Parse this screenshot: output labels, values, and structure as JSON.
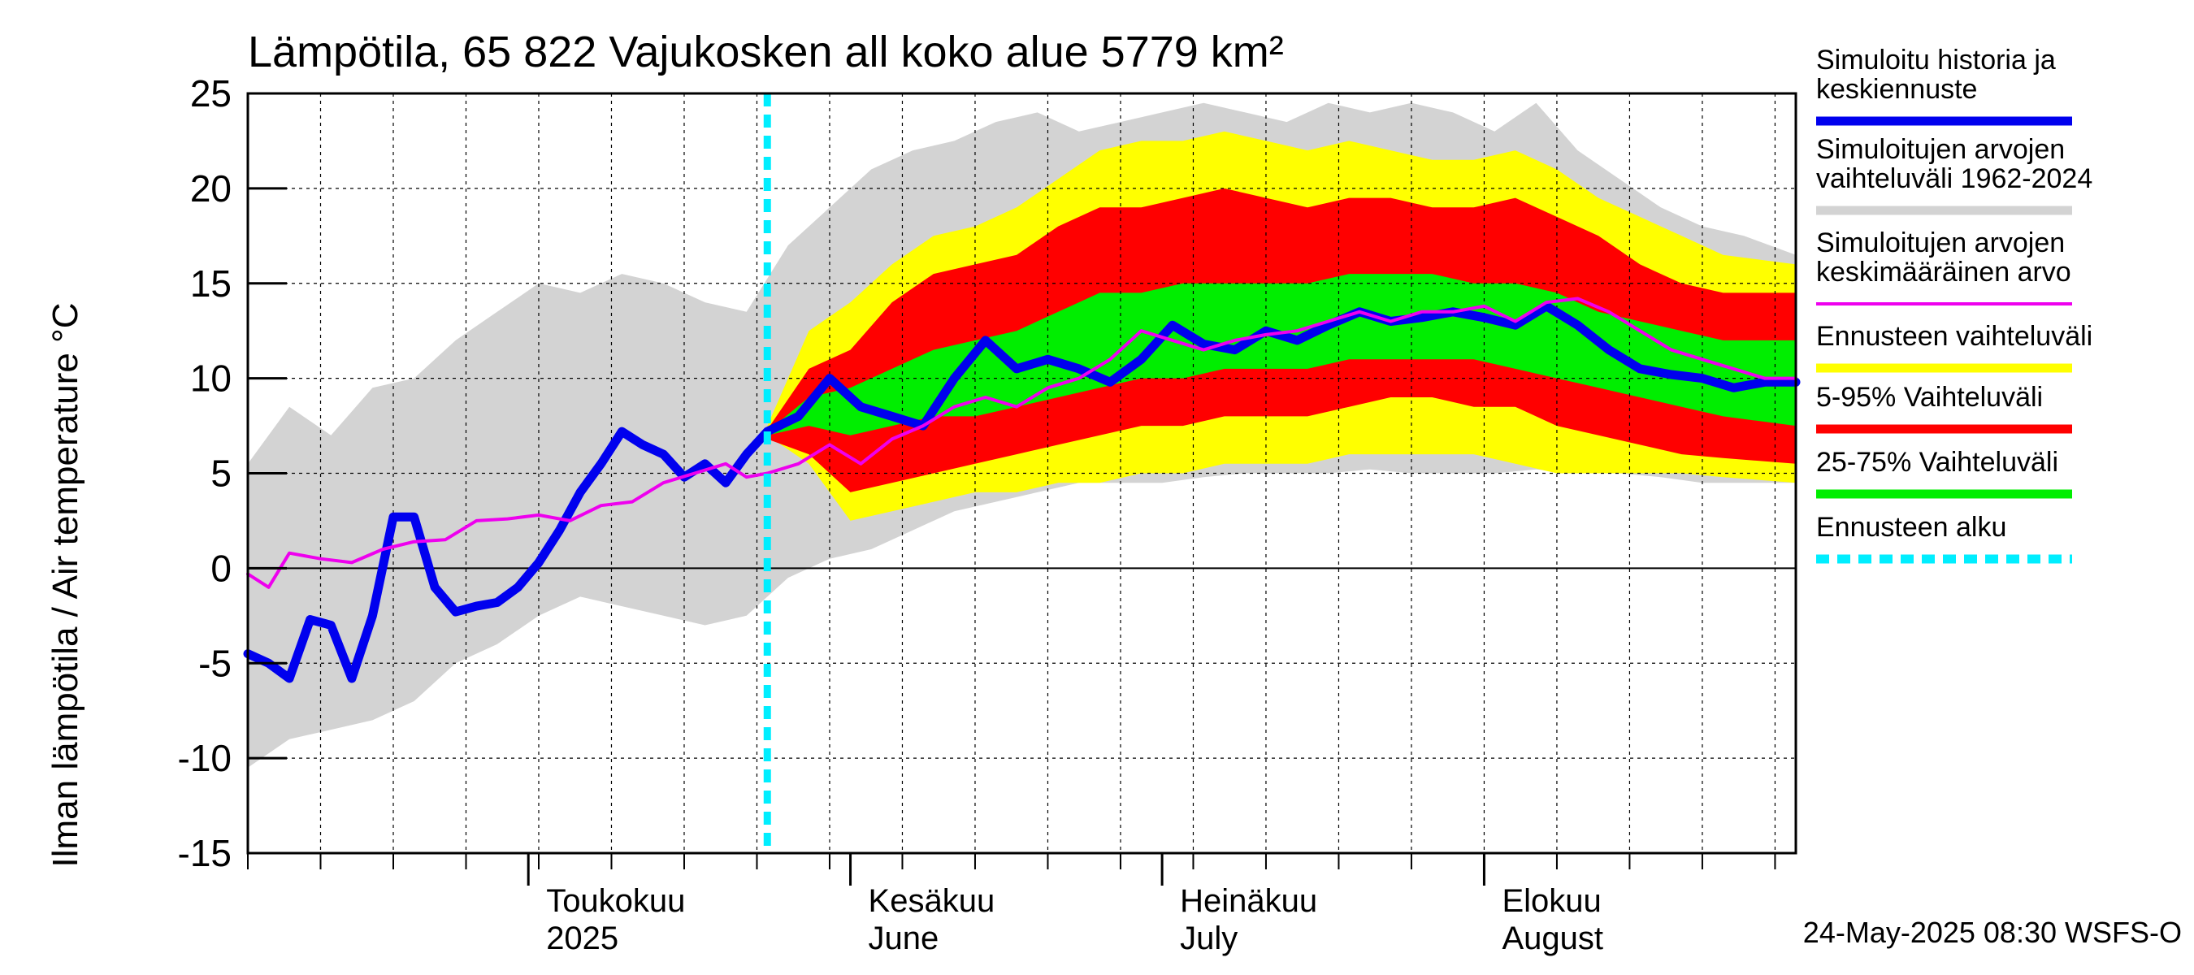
{
  "chart_data": {
    "type": "area",
    "title": "Lämpötila, 65 822 Vajukosken all koko alue 5779 km²",
    "ylabel": "Ilman lämpötila / Air temperature   °C",
    "xlabel": "",
    "ylim": [
      -15,
      25
    ],
    "yticks": [
      -15,
      -10,
      -5,
      0,
      5,
      10,
      15,
      20,
      25
    ],
    "x_start": "2025-04-04",
    "x_end": "2025-08-31",
    "forecast_start": "2025-05-24",
    "grid": true,
    "legend_position": "right",
    "month_labels": [
      {
        "date": "2025-05-01",
        "line1": "Toukokuu",
        "line2": "2025"
      },
      {
        "date": "2025-06-01",
        "line1": "Kesäkuu",
        "line2": "June"
      },
      {
        "date": "2025-07-01",
        "line1": "Heinäkuu",
        "line2": "July"
      },
      {
        "date": "2025-08-01",
        "line1": "Elokuu",
        "line2": "August"
      }
    ],
    "footer": "24-May-2025 08:30 WSFS-O",
    "legend": [
      {
        "key": "sim",
        "label_lines": [
          "Simuloitu historia ja",
          "keskiennuste"
        ],
        "color": "#0000ee",
        "style": "solid"
      },
      {
        "key": "hist_range",
        "label_lines": [
          "Simuloitujen arvojen",
          "vaihteluväli 1962-2024"
        ],
        "color": "#d3d3d3",
        "style": "solid"
      },
      {
        "key": "hist_mean",
        "label_lines": [
          "Simuloitujen arvojen",
          "keskimääräinen arvo"
        ],
        "color": "#ee00ee",
        "style": "solid"
      },
      {
        "key": "fc_range",
        "label_lines": [
          "Ennusteen vaihteluväli"
        ],
        "color": "#ffff00",
        "style": "solid"
      },
      {
        "key": "p5_95",
        "label_lines": [
          "5-95% Vaihteluväli"
        ],
        "color": "#ff0000",
        "style": "solid"
      },
      {
        "key": "p25_75",
        "label_lines": [
          "25-75% Vaihteluväli"
        ],
        "color": "#00ee00",
        "style": "solid"
      },
      {
        "key": "fc_start",
        "label_lines": [
          "Ennusteen alku"
        ],
        "color": "#00eeff",
        "style": "dashed"
      }
    ],
    "series": {
      "hist_range": {
        "name": "Simuloitujen arvojen vaihteluväli 1962-2024",
        "x": [
          "2025-04-04",
          "2025-04-08",
          "2025-04-12",
          "2025-04-16",
          "2025-04-20",
          "2025-04-24",
          "2025-04-28",
          "2025-05-02",
          "2025-05-06",
          "2025-05-10",
          "2025-05-14",
          "2025-05-18",
          "2025-05-22",
          "2025-05-26",
          "2025-05-30",
          "2025-06-03",
          "2025-06-07",
          "2025-06-11",
          "2025-06-15",
          "2025-06-19",
          "2025-06-23",
          "2025-06-27",
          "2025-07-01",
          "2025-07-05",
          "2025-07-09",
          "2025-07-13",
          "2025-07-17",
          "2025-07-21",
          "2025-07-25",
          "2025-07-29",
          "2025-08-02",
          "2025-08-06",
          "2025-08-10",
          "2025-08-14",
          "2025-08-18",
          "2025-08-22",
          "2025-08-26",
          "2025-08-31"
        ],
        "upper": [
          5.5,
          8.5,
          7.0,
          9.5,
          10.0,
          12.0,
          13.5,
          15.0,
          14.5,
          15.5,
          15.0,
          14.0,
          13.5,
          17.0,
          19.0,
          21.0,
          22.0,
          22.5,
          23.5,
          24.0,
          23.0,
          23.5,
          24.0,
          24.5,
          24.0,
          23.5,
          24.5,
          24.0,
          24.5,
          24.0,
          23.0,
          24.5,
          22.0,
          20.5,
          19.0,
          18.0,
          17.5,
          16.5
        ],
        "lower": [
          -10.5,
          -9.0,
          -8.5,
          -8.0,
          -7.0,
          -5.0,
          -4.0,
          -2.5,
          -1.5,
          -2.0,
          -2.5,
          -3.0,
          -2.5,
          -0.5,
          0.5,
          1.0,
          2.0,
          3.0,
          3.5,
          4.0,
          4.5,
          4.5,
          4.5,
          4.8,
          5.0,
          5.0,
          5.0,
          5.2,
          5.0,
          5.0,
          5.0,
          5.2,
          5.0,
          5.0,
          4.8,
          4.5,
          4.5,
          4.5
        ]
      },
      "fc_range": {
        "name": "Ennusteen vaihteluväli",
        "x": [
          "2025-05-24",
          "2025-05-28",
          "2025-06-01",
          "2025-06-05",
          "2025-06-09",
          "2025-06-13",
          "2025-06-17",
          "2025-06-21",
          "2025-06-25",
          "2025-06-29",
          "2025-07-03",
          "2025-07-07",
          "2025-07-11",
          "2025-07-15",
          "2025-07-19",
          "2025-07-23",
          "2025-07-27",
          "2025-07-31",
          "2025-08-04",
          "2025-08-08",
          "2025-08-12",
          "2025-08-16",
          "2025-08-20",
          "2025-08-24",
          "2025-08-31"
        ],
        "upper": [
          7.5,
          12.5,
          14.0,
          16.0,
          17.5,
          18.0,
          19.0,
          20.5,
          22.0,
          22.5,
          22.5,
          23.0,
          22.5,
          22.0,
          22.5,
          22.0,
          21.5,
          21.5,
          22.0,
          21.0,
          19.5,
          18.5,
          17.5,
          16.5,
          16.0
        ],
        "lower": [
          7.0,
          5.5,
          2.5,
          3.0,
          3.5,
          4.0,
          4.0,
          4.5,
          4.5,
          5.0,
          5.0,
          5.5,
          5.5,
          5.5,
          6.0,
          6.0,
          6.0,
          6.0,
          5.5,
          5.0,
          5.0,
          5.0,
          5.0,
          4.8,
          4.5
        ]
      },
      "p5_95": {
        "name": "5-95% Vaihteluväli",
        "x": [
          "2025-05-24",
          "2025-05-28",
          "2025-06-01",
          "2025-06-05",
          "2025-06-09",
          "2025-06-13",
          "2025-06-17",
          "2025-06-21",
          "2025-06-25",
          "2025-06-29",
          "2025-07-03",
          "2025-07-07",
          "2025-07-11",
          "2025-07-15",
          "2025-07-19",
          "2025-07-23",
          "2025-07-27",
          "2025-07-31",
          "2025-08-04",
          "2025-08-08",
          "2025-08-12",
          "2025-08-16",
          "2025-08-20",
          "2025-08-24",
          "2025-08-31"
        ],
        "upper": [
          7.3,
          10.5,
          11.5,
          14.0,
          15.5,
          16.0,
          16.5,
          18.0,
          19.0,
          19.0,
          19.5,
          20.0,
          19.5,
          19.0,
          19.5,
          19.5,
          19.0,
          19.0,
          19.5,
          18.5,
          17.5,
          16.0,
          15.0,
          14.5,
          14.5
        ],
        "lower": [
          6.8,
          6.0,
          4.0,
          4.5,
          5.0,
          5.5,
          6.0,
          6.5,
          7.0,
          7.5,
          7.5,
          8.0,
          8.0,
          8.0,
          8.5,
          9.0,
          9.0,
          8.5,
          8.5,
          7.5,
          7.0,
          6.5,
          6.0,
          5.8,
          5.5
        ]
      },
      "p25_75": {
        "name": "25-75% Vaihteluväli",
        "x": [
          "2025-05-24",
          "2025-05-28",
          "2025-06-01",
          "2025-06-05",
          "2025-06-09",
          "2025-06-13",
          "2025-06-17",
          "2025-06-21",
          "2025-06-25",
          "2025-06-29",
          "2025-07-03",
          "2025-07-07",
          "2025-07-11",
          "2025-07-15",
          "2025-07-19",
          "2025-07-23",
          "2025-07-27",
          "2025-07-31",
          "2025-08-04",
          "2025-08-08",
          "2025-08-12",
          "2025-08-16",
          "2025-08-20",
          "2025-08-24",
          "2025-08-31"
        ],
        "upper": [
          7.2,
          9.0,
          9.5,
          10.5,
          11.5,
          12.0,
          12.5,
          13.5,
          14.5,
          14.5,
          15.0,
          15.0,
          15.0,
          15.0,
          15.5,
          15.5,
          15.5,
          15.0,
          15.0,
          14.5,
          13.5,
          13.0,
          12.5,
          12.0,
          12.0
        ],
        "lower": [
          7.0,
          7.5,
          7.0,
          7.5,
          8.0,
          8.0,
          8.5,
          9.0,
          9.5,
          10.0,
          10.0,
          10.5,
          10.5,
          10.5,
          11.0,
          11.0,
          11.0,
          11.0,
          10.5,
          10.0,
          9.5,
          9.0,
          8.5,
          8.0,
          7.5
        ]
      },
      "hist_mean": {
        "name": "Simuloitujen arvojen keskimääräinen arvo",
        "x": [
          "2025-04-04",
          "2025-04-06",
          "2025-04-08",
          "2025-04-11",
          "2025-04-14",
          "2025-04-17",
          "2025-04-20",
          "2025-04-23",
          "2025-04-26",
          "2025-04-29",
          "2025-05-02",
          "2025-05-05",
          "2025-05-08",
          "2025-05-11",
          "2025-05-14",
          "2025-05-17",
          "2025-05-20",
          "2025-05-22",
          "2025-05-24",
          "2025-05-27",
          "2025-05-30",
          "2025-06-02",
          "2025-06-05",
          "2025-06-08",
          "2025-06-11",
          "2025-06-14",
          "2025-06-17",
          "2025-06-20",
          "2025-06-23",
          "2025-06-26",
          "2025-06-29",
          "2025-07-02",
          "2025-07-05",
          "2025-07-08",
          "2025-07-11",
          "2025-07-14",
          "2025-07-17",
          "2025-07-20",
          "2025-07-23",
          "2025-07-26",
          "2025-07-29",
          "2025-08-01",
          "2025-08-04",
          "2025-08-07",
          "2025-08-10",
          "2025-08-13",
          "2025-08-16",
          "2025-08-19",
          "2025-08-22",
          "2025-08-25",
          "2025-08-28",
          "2025-08-31"
        ],
        "y": [
          -0.3,
          -1.0,
          0.8,
          0.5,
          0.3,
          1.0,
          1.4,
          1.5,
          2.5,
          2.6,
          2.8,
          2.5,
          3.3,
          3.5,
          4.5,
          5.0,
          5.5,
          4.8,
          5.0,
          5.5,
          6.5,
          5.5,
          6.8,
          7.5,
          8.5,
          9.0,
          8.5,
          9.5,
          10.0,
          11.0,
          12.5,
          12.0,
          11.5,
          12.0,
          12.3,
          12.5,
          13.0,
          13.5,
          13.0,
          13.5,
          13.5,
          13.8,
          13.0,
          14.0,
          14.2,
          13.5,
          12.5,
          11.5,
          11.0,
          10.5,
          10.0,
          10.0
        ]
      },
      "sim": {
        "name": "Simuloitu historia ja keskiennuste",
        "x": [
          "2025-04-04",
          "2025-04-06",
          "2025-04-08",
          "2025-04-10",
          "2025-04-12",
          "2025-04-14",
          "2025-04-16",
          "2025-04-18",
          "2025-04-20",
          "2025-04-22",
          "2025-04-24",
          "2025-04-26",
          "2025-04-28",
          "2025-04-30",
          "2025-05-02",
          "2025-05-04",
          "2025-05-06",
          "2025-05-08",
          "2025-05-10",
          "2025-05-12",
          "2025-05-14",
          "2025-05-16",
          "2025-05-18",
          "2025-05-20",
          "2025-05-22",
          "2025-05-24",
          "2025-05-27",
          "2025-05-30",
          "2025-06-02",
          "2025-06-05",
          "2025-06-08",
          "2025-06-11",
          "2025-06-14",
          "2025-06-17",
          "2025-06-20",
          "2025-06-23",
          "2025-06-26",
          "2025-06-29",
          "2025-07-02",
          "2025-07-05",
          "2025-07-08",
          "2025-07-11",
          "2025-07-14",
          "2025-07-17",
          "2025-07-20",
          "2025-07-23",
          "2025-07-26",
          "2025-07-29",
          "2025-08-01",
          "2025-08-04",
          "2025-08-07",
          "2025-08-10",
          "2025-08-13",
          "2025-08-16",
          "2025-08-19",
          "2025-08-22",
          "2025-08-25",
          "2025-08-28",
          "2025-08-31"
        ],
        "y": [
          -4.5,
          -5.0,
          -5.8,
          -2.7,
          -3.0,
          -5.8,
          -2.5,
          2.7,
          2.7,
          -1.0,
          -2.3,
          -2.0,
          -1.8,
          -1.0,
          0.3,
          2.0,
          4.0,
          5.5,
          7.2,
          6.5,
          6.0,
          4.8,
          5.5,
          4.5,
          6.0,
          7.2,
          8.0,
          10.0,
          8.5,
          8.0,
          7.5,
          10.0,
          12.0,
          10.5,
          11.0,
          10.5,
          9.8,
          11.0,
          12.8,
          11.8,
          11.5,
          12.5,
          12.0,
          12.8,
          13.5,
          13.0,
          13.2,
          13.5,
          13.2,
          12.8,
          13.8,
          12.8,
          11.5,
          10.5,
          10.2,
          10.0,
          9.5,
          9.8,
          9.8
        ]
      }
    }
  }
}
